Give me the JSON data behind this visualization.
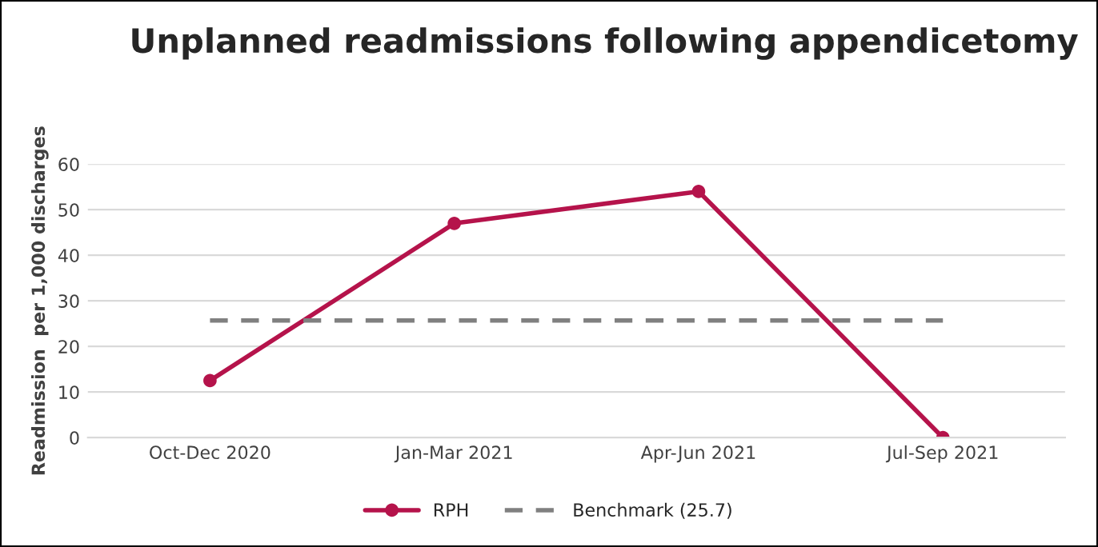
{
  "chart_data": {
    "type": "line",
    "title": "Unplanned readmissions following appendicetomy",
    "ylabel": "Readmission  per 1,000 discharges",
    "categories": [
      "Oct-Dec 2020",
      "Jan-Mar 2021",
      "Apr-Jun 2021",
      "Jul-Sep 2021"
    ],
    "series": [
      {
        "name": "RPH",
        "color": "#b5134b",
        "values": [
          12.5,
          47,
          54,
          0
        ],
        "marker": "circle",
        "line_style": "solid"
      },
      {
        "name": "Benchmark (25.7)",
        "color": "#808080",
        "values": [
          25.7,
          25.7,
          25.7,
          25.7
        ],
        "marker": "none",
        "line_style": "dashed"
      }
    ],
    "ylim": [
      0,
      60
    ],
    "yticks": [
      0,
      10,
      20,
      30,
      40,
      50,
      60
    ],
    "grid": "y",
    "legend": "bottom"
  }
}
